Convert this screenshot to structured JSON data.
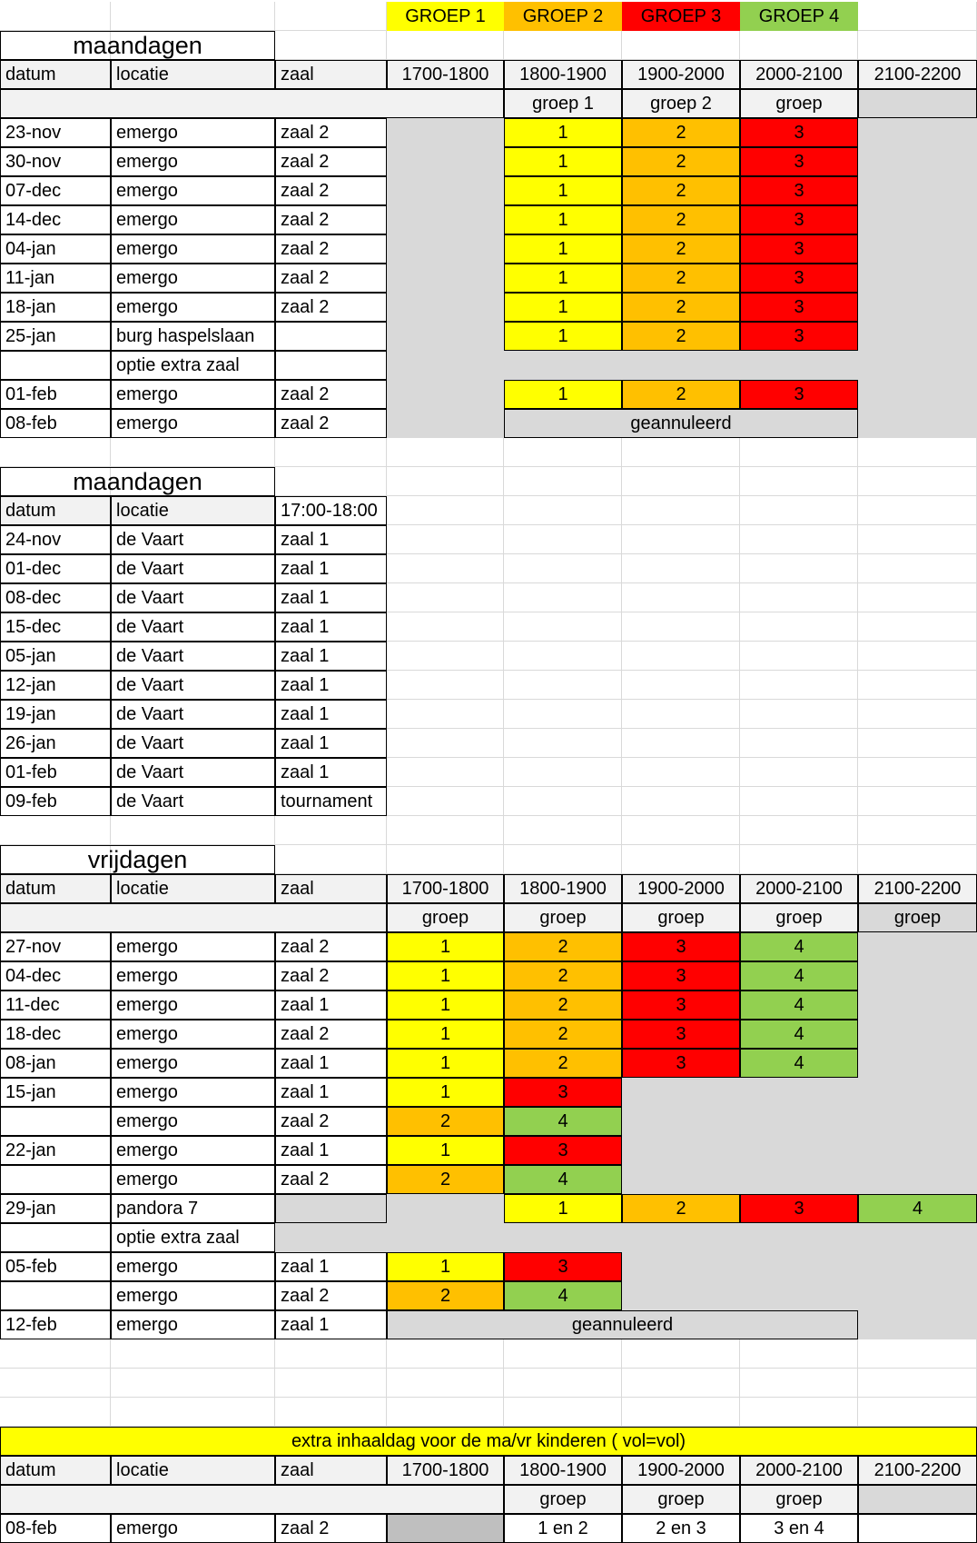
{
  "colors": {
    "yellow": "#ffff00",
    "orange": "#ffc000",
    "red": "#ff0000",
    "green": "#92d050",
    "grey": "#d9d9d9",
    "header_grey": "#f2f2f2",
    "gridline": "#d9d9d9"
  },
  "group_legend": [
    "GROEP 1",
    "GROEP 2",
    "GROEP 3",
    "GROEP 4"
  ],
  "monday_section": {
    "title": "maandagen",
    "headers": [
      "datum",
      "locatie",
      "zaal"
    ],
    "time_slots": [
      "1700-1800",
      "1800-1900",
      "1900-2000",
      "2000-2100",
      "2100-2200"
    ],
    "group_row": [
      "groep 1",
      "groep 2",
      "groep"
    ],
    "rows": [
      {
        "date": "23-nov",
        "location": "emergo",
        "hall": "zaal 2",
        "g": [
          "1",
          "2",
          "3"
        ]
      },
      {
        "date": "30-nov",
        "location": "emergo",
        "hall": "zaal 2",
        "g": [
          "1",
          "2",
          "3"
        ]
      },
      {
        "date": "07-dec",
        "location": "emergo",
        "hall": "zaal 2",
        "g": [
          "1",
          "2",
          "3"
        ]
      },
      {
        "date": "14-dec",
        "location": "emergo",
        "hall": "zaal 2",
        "g": [
          "1",
          "2",
          "3"
        ]
      },
      {
        "date": "04-jan",
        "location": "emergo",
        "hall": "zaal 2",
        "g": [
          "1",
          "2",
          "3"
        ]
      },
      {
        "date": "11-jan",
        "location": "emergo",
        "hall": "zaal 2",
        "g": [
          "1",
          "2",
          "3"
        ]
      },
      {
        "date": "18-jan",
        "location": "emergo",
        "hall": "zaal 2",
        "g": [
          "1",
          "2",
          "3"
        ]
      },
      {
        "date": "25-jan",
        "location": "burg haspelslaan",
        "hall": "",
        "g": [
          "1",
          "2",
          "3"
        ]
      },
      {
        "date": "",
        "location": "optie extra zaal",
        "hall": "",
        "g": []
      },
      {
        "date": "01-feb",
        "location": "emergo",
        "hall": "zaal 2",
        "g": [
          "1",
          "2",
          "3"
        ]
      },
      {
        "date": "08-feb",
        "location": "emergo",
        "hall": "zaal 2",
        "cancelled": "geannuleerd"
      }
    ]
  },
  "monday_section_2": {
    "title": "maandagen",
    "headers": [
      "datum",
      "locatie",
      "17:00-18:00"
    ],
    "rows": [
      {
        "date": "24-nov",
        "location": "de Vaart",
        "hall": "zaal 1"
      },
      {
        "date": "01-dec",
        "location": "de Vaart",
        "hall": "zaal 1"
      },
      {
        "date": "08-dec",
        "location": "de Vaart",
        "hall": "zaal 1"
      },
      {
        "date": "15-dec",
        "location": "de Vaart",
        "hall": "zaal 1"
      },
      {
        "date": "05-jan",
        "location": "de Vaart",
        "hall": "zaal 1"
      },
      {
        "date": "12-jan",
        "location": "de Vaart",
        "hall": "zaal 1"
      },
      {
        "date": "19-jan",
        "location": "de Vaart",
        "hall": "zaal 1"
      },
      {
        "date": "26-jan",
        "location": "de Vaart",
        "hall": "zaal 1"
      },
      {
        "date": "01-feb",
        "location": "de Vaart",
        "hall": "zaal 1"
      },
      {
        "date": "09-feb",
        "location": "de Vaart",
        "hall": "tournament"
      }
    ]
  },
  "friday_section": {
    "title": "vrijdagen",
    "headers": [
      "datum",
      "locatie",
      "zaal"
    ],
    "time_slots": [
      "1700-1800",
      "1800-1900",
      "1900-2000",
      "2000-2100",
      "2100-2200"
    ],
    "group_row": [
      "groep",
      "groep",
      "groep",
      "groep",
      "groep"
    ],
    "rows": [
      {
        "date": "27-nov",
        "location": "emergo",
        "hall": "zaal 2",
        "g": [
          "1",
          "2",
          "3",
          "4"
        ]
      },
      {
        "date": "04-dec",
        "location": "emergo",
        "hall": "zaal 2",
        "g": [
          "1",
          "2",
          "3",
          "4"
        ]
      },
      {
        "date": "11-dec",
        "location": "emergo",
        "hall": "zaal 1",
        "g": [
          "1",
          "2",
          "3",
          "4"
        ]
      },
      {
        "date": "18-dec",
        "location": "emergo",
        "hall": "zaal 2",
        "g": [
          "1",
          "2",
          "3",
          "4"
        ]
      },
      {
        "date": "08-jan",
        "location": "emergo",
        "hall": "zaal 1",
        "g": [
          "1",
          "2",
          "3",
          "4"
        ]
      },
      {
        "date": "15-jan",
        "location": "emergo",
        "hall": "zaal 1",
        "g": [
          "1",
          "3"
        ]
      },
      {
        "date": "",
        "location": "emergo",
        "hall": "zaal 2",
        "g": [
          "2",
          "4"
        ]
      },
      {
        "date": "22-jan",
        "location": "emergo",
        "hall": "zaal 1",
        "g": [
          "1",
          "3"
        ]
      },
      {
        "date": "",
        "location": "emergo",
        "hall": "zaal 2",
        "g": [
          "2",
          "4"
        ]
      },
      {
        "date": "29-jan",
        "location": "pandora 7",
        "hall": "",
        "g": [
          "1",
          "2",
          "3",
          "4"
        ]
      },
      {
        "date": "",
        "location": "optie extra zaal",
        "hall": "",
        "g": []
      },
      {
        "date": "05-feb",
        "location": "emergo",
        "hall": "zaal 1",
        "g": [
          "1",
          "3"
        ]
      },
      {
        "date": "",
        "location": "emergo",
        "hall": "zaal 2",
        "g": [
          "2",
          "4"
        ]
      },
      {
        "date": "12-feb",
        "location": "emergo",
        "hall": "zaal 1",
        "cancelled": "geannuleerd"
      }
    ]
  },
  "extra_section": {
    "title": "extra inhaaldag voor de ma/vr kinderen ( vol=vol)",
    "headers": [
      "datum",
      "locatie",
      "zaal"
    ],
    "time_slots": [
      "1700-1800",
      "1800-1900",
      "1900-2000",
      "2000-2100",
      "2100-2200"
    ],
    "group_row": [
      "groep",
      "groep",
      "groep"
    ],
    "row": {
      "date": "08-feb",
      "location": "emergo",
      "hall": "zaal 2",
      "g": [
        "1 en 2",
        "2 en 3",
        "3 en 4"
      ]
    }
  }
}
